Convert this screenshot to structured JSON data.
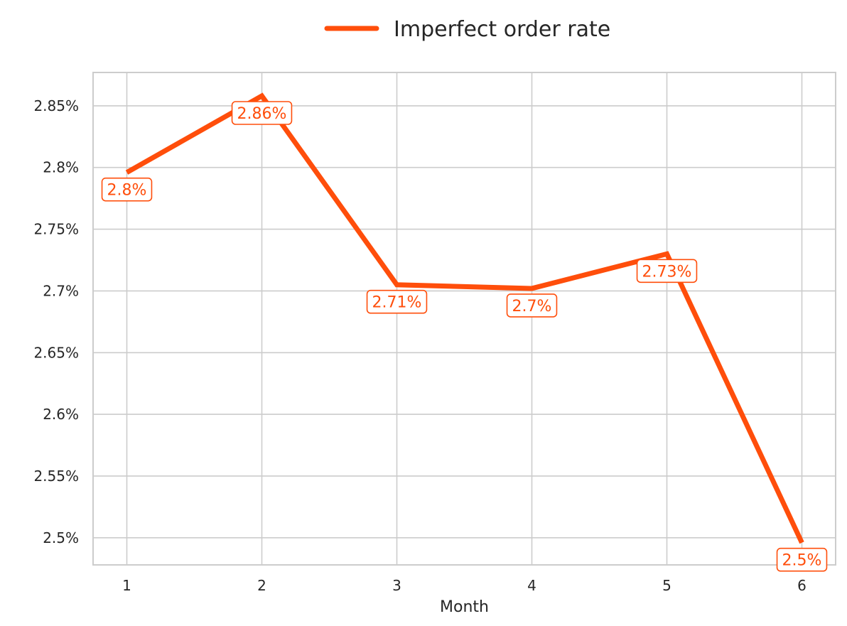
{
  "chart_data": {
    "type": "line",
    "title": "",
    "xlabel": "Month",
    "ylabel": "",
    "categories": [
      "1",
      "2",
      "3",
      "4",
      "5",
      "6"
    ],
    "series": [
      {
        "name": "Imperfect order rate",
        "color": "#ff4e0b",
        "values": [
          2.796,
          2.858,
          2.705,
          2.702,
          2.73,
          2.496
        ],
        "labels": [
          "2.8%",
          "2.86%",
          "2.71%",
          "2.7%",
          "2.73%",
          "2.5%"
        ]
      }
    ],
    "y_ticks": [
      2.5,
      2.55,
      2.6,
      2.65,
      2.7,
      2.75,
      2.8,
      2.85
    ],
    "y_tick_labels": [
      "2.5%",
      "2.55%",
      "2.6%",
      "2.65%",
      "2.7%",
      "2.75%",
      "2.8%",
      "2.85%"
    ],
    "xlim": [
      0.75,
      6.25
    ],
    "ylim": [
      2.478,
      2.877
    ],
    "grid": true,
    "legend_position": "top-center"
  }
}
